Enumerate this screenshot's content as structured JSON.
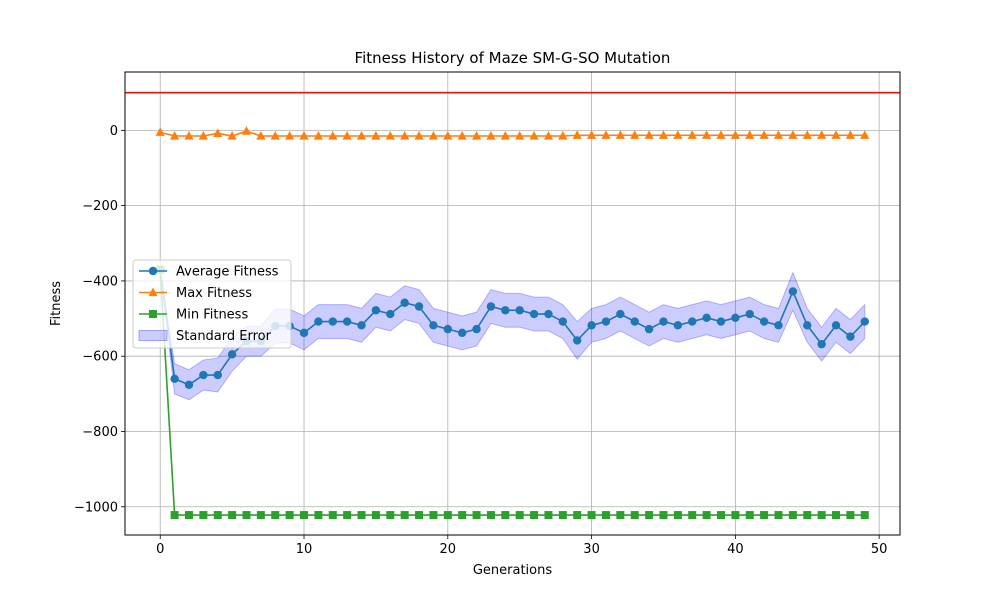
{
  "chart_data": {
    "type": "line",
    "title": "Fitness History of Maze SM-G-SO Mutation",
    "xlabel": "Generations",
    "ylabel": "Fitness",
    "xlim": [
      -2.45,
      51.45
    ],
    "ylim": [
      -1075,
      155
    ],
    "xticks": [
      0,
      10,
      20,
      30,
      40,
      50
    ],
    "yticks": [
      0,
      -200,
      -400,
      -600,
      -800,
      -1000
    ],
    "xtick_labels": [
      "0",
      "10",
      "20",
      "30",
      "40",
      "50"
    ],
    "ytick_labels": [
      "0",
      "−200",
      "−400",
      "−600",
      "−800",
      "−1000"
    ],
    "grid": true,
    "legend_position": "center-left",
    "reference_line": {
      "y": 100,
      "color": "#e8120c"
    },
    "x": [
      0,
      1,
      2,
      3,
      4,
      5,
      6,
      7,
      8,
      9,
      10,
      11,
      12,
      13,
      14,
      15,
      16,
      17,
      18,
      19,
      20,
      21,
      22,
      23,
      24,
      25,
      26,
      27,
      28,
      29,
      30,
      31,
      32,
      33,
      34,
      35,
      36,
      37,
      38,
      39,
      40,
      41,
      42,
      43,
      44,
      45,
      46,
      47,
      48,
      49
    ],
    "series": [
      {
        "name": "Average Fitness",
        "color": "#1f77b4",
        "marker": "circle",
        "values": [
          -370,
          -660,
          -676,
          -650,
          -650,
          -595,
          -560,
          -560,
          -520,
          -520,
          -538,
          -508,
          -508,
          -508,
          -518,
          -478,
          -488,
          -458,
          -468,
          -518,
          -528,
          -538,
          -528,
          -468,
          -478,
          -478,
          -488,
          -488,
          -508,
          -558,
          -518,
          -508,
          -488,
          -508,
          -528,
          -508,
          -518,
          -508,
          -498,
          -508,
          -498,
          -488,
          -508,
          -518,
          -428,
          -518,
          -568,
          -518,
          -548,
          -508
        ]
      },
      {
        "name": "Max Fitness",
        "color": "#ff7f0e",
        "marker": "triangle",
        "values": [
          -5,
          -15,
          -15,
          -15,
          -8,
          -15,
          -2,
          -15,
          -15,
          -15,
          -15,
          -15,
          -15,
          -15,
          -15,
          -15,
          -15,
          -15,
          -15,
          -15,
          -15,
          -15,
          -15,
          -15,
          -15,
          -15,
          -15,
          -15,
          -15,
          -13,
          -13,
          -13,
          -13,
          -13,
          -13,
          -13,
          -13,
          -13,
          -13,
          -13,
          -13,
          -13,
          -13,
          -13,
          -13,
          -13,
          -13,
          -13,
          -13,
          -13
        ]
      },
      {
        "name": "Min Fitness",
        "color": "#2ca02c",
        "marker": "square",
        "values": [
          -370,
          -1022,
          -1022,
          -1022,
          -1022,
          -1022,
          -1022,
          -1022,
          -1022,
          -1022,
          -1022,
          -1022,
          -1022,
          -1022,
          -1022,
          -1022,
          -1022,
          -1022,
          -1022,
          -1022,
          -1022,
          -1022,
          -1022,
          -1022,
          -1022,
          -1022,
          -1022,
          -1022,
          -1022,
          -1022,
          -1022,
          -1022,
          -1022,
          -1022,
          -1022,
          -1022,
          -1022,
          -1022,
          -1022,
          -1022,
          -1022,
          -1022,
          -1022,
          -1022,
          -1022,
          -1022,
          -1022,
          -1022,
          -1022,
          -1022
        ]
      }
    ],
    "error_band": {
      "name": "Standard Error",
      "color": "#0000ff",
      "opacity": 0.2,
      "of_series": "Average Fitness",
      "half_width": [
        0,
        40,
        40,
        40,
        45,
        45,
        40,
        40,
        45,
        45,
        45,
        45,
        45,
        45,
        45,
        45,
        45,
        45,
        45,
        45,
        45,
        45,
        45,
        45,
        45,
        45,
        45,
        45,
        45,
        50,
        45,
        45,
        45,
        45,
        45,
        45,
        45,
        45,
        45,
        45,
        45,
        45,
        45,
        45,
        50,
        45,
        45,
        45,
        45,
        45
      ]
    }
  }
}
